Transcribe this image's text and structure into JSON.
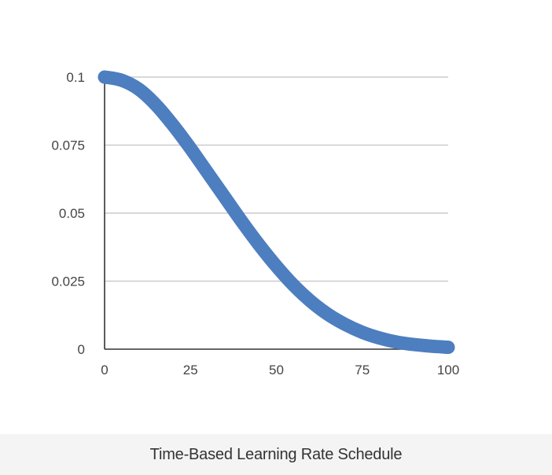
{
  "chart_data": {
    "type": "line",
    "title": "",
    "xlabel": "",
    "ylabel": "",
    "xlim": [
      0,
      100
    ],
    "ylim": [
      0,
      0.1
    ],
    "x_ticks": [
      0,
      25,
      50,
      75,
      100
    ],
    "x_tick_labels": [
      "0",
      "25",
      "50",
      "75",
      "100"
    ],
    "y_ticks": [
      0,
      0.025,
      0.05,
      0.075,
      0.1
    ],
    "y_tick_labels": [
      "0",
      "0.025",
      "0.05",
      "0.075",
      "0.1"
    ],
    "grid": true,
    "legend": "none",
    "series": [
      {
        "color": "#4d7ebf",
        "x": [
          0,
          5,
          10,
          15,
          20,
          25,
          30,
          35,
          40,
          45,
          50,
          55,
          60,
          65,
          70,
          75,
          80,
          85,
          90,
          95,
          100
        ],
        "y": [
          0.1,
          0.0988,
          0.0955,
          0.0897,
          0.0822,
          0.0738,
          0.0648,
          0.0558,
          0.0468,
          0.0383,
          0.0305,
          0.0235,
          0.0176,
          0.0128,
          0.0091,
          0.0062,
          0.0041,
          0.0026,
          0.0017,
          0.0011,
          0.0007
        ]
      }
    ]
  },
  "caption": "Time-Based Learning Rate Schedule",
  "colors": {
    "line": "#4d7ebf",
    "gridline": "#cccccc",
    "axis": "#333333",
    "tick_text": "#444444",
    "caption_bg": "#f4f4f4"
  }
}
